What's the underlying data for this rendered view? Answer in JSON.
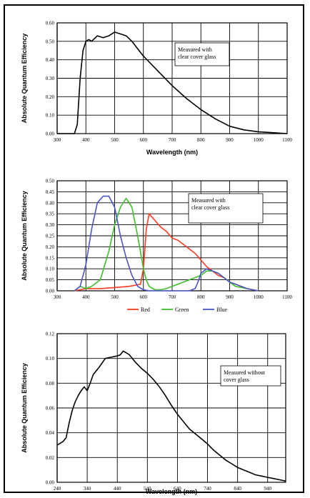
{
  "chart_data": [
    {
      "type": "line",
      "xlabel": "Wavelength (nm)",
      "ylabel": "Absolute Quantum Efficiency",
      "xlim": [
        300,
        1100
      ],
      "ylim": [
        0.0,
        0.6
      ],
      "xticks": [
        "300",
        "400",
        "500",
        "600",
        "700",
        "800",
        "900",
        "1000",
        "1100"
      ],
      "yticks": [
        "0.00",
        "0.10",
        "0.20",
        "0.30",
        "0.40",
        "0.50",
        "0.60"
      ],
      "grid": true,
      "annotation": [
        "Measured with",
        "clear cover glass"
      ],
      "series": [
        {
          "color": "#000000",
          "x": [
            300,
            360,
            370,
            380,
            390,
            400,
            410,
            420,
            440,
            460,
            480,
            500,
            520,
            540,
            560,
            580,
            600,
            650,
            700,
            750,
            800,
            850,
            900,
            950,
            1000,
            1050,
            1100
          ],
          "y": [
            0.0,
            0.0,
            0.05,
            0.3,
            0.45,
            0.5,
            0.51,
            0.5,
            0.53,
            0.52,
            0.53,
            0.55,
            0.54,
            0.53,
            0.5,
            0.46,
            0.42,
            0.34,
            0.26,
            0.19,
            0.13,
            0.08,
            0.04,
            0.02,
            0.01,
            0.005,
            0.0
          ]
        }
      ]
    },
    {
      "type": "line",
      "xlabel": "",
      "ylabel": "Absolute Quantum Efficiency",
      "xlim": [
        300,
        1100
      ],
      "ylim": [
        0.0,
        0.5
      ],
      "xticks": [
        "300",
        "400",
        "500",
        "600",
        "700",
        "800",
        "900",
        "1000",
        "1100"
      ],
      "yticks": [
        "0.00",
        "0.05",
        "0.10",
        "0.15",
        "0.20",
        "0.25",
        "0.30",
        "0.35",
        "0.40",
        "0.45",
        "0.50"
      ],
      "grid": true,
      "annotation": [
        "Measured with",
        "clear cover glass"
      ],
      "legend": "bottom",
      "series": [
        {
          "name": "Red",
          "color": "#ff3b1f",
          "x": [
            360,
            380,
            400,
            450,
            500,
            550,
            590,
            600,
            610,
            620,
            640,
            660,
            680,
            700,
            720,
            740,
            760,
            780,
            800,
            820,
            840,
            860,
            880,
            900,
            920,
            940,
            960,
            980,
            1000
          ],
          "y": [
            0.0,
            0.005,
            0.01,
            0.01,
            0.015,
            0.02,
            0.03,
            0.1,
            0.28,
            0.35,
            0.32,
            0.29,
            0.27,
            0.24,
            0.23,
            0.21,
            0.19,
            0.17,
            0.14,
            0.11,
            0.09,
            0.07,
            0.06,
            0.04,
            0.03,
            0.02,
            0.01,
            0.005,
            0.0
          ]
        },
        {
          "name": "Green",
          "color": "#3fbf2a",
          "x": [
            360,
            380,
            400,
            420,
            450,
            480,
            500,
            520,
            540,
            560,
            580,
            600,
            610,
            620,
            640,
            660,
            680,
            700,
            720,
            740,
            760,
            780,
            800,
            820,
            840,
            860,
            880,
            900,
            920,
            940,
            960,
            980,
            1000
          ],
          "y": [
            0.0,
            0.02,
            0.01,
            0.02,
            0.05,
            0.18,
            0.3,
            0.38,
            0.42,
            0.38,
            0.25,
            0.1,
            0.05,
            0.02,
            0.005,
            0.005,
            0.01,
            0.02,
            0.03,
            0.04,
            0.05,
            0.06,
            0.07,
            0.09,
            0.09,
            0.08,
            0.06,
            0.04,
            0.02,
            0.015,
            0.01,
            0.005,
            0.0
          ]
        },
        {
          "name": "Blue",
          "color": "#4a56c8",
          "x": [
            360,
            380,
            400,
            420,
            440,
            460,
            480,
            500,
            520,
            540,
            560,
            580,
            600,
            620,
            700,
            760,
            780,
            790,
            800,
            820,
            840,
            860,
            880,
            900,
            920,
            940,
            960,
            980,
            1000
          ],
          "y": [
            0.0,
            0.02,
            0.12,
            0.28,
            0.4,
            0.43,
            0.43,
            0.38,
            0.25,
            0.15,
            0.07,
            0.02,
            0.005,
            0.0,
            0.0,
            0.0,
            0.01,
            0.04,
            0.08,
            0.1,
            0.09,
            0.08,
            0.06,
            0.04,
            0.03,
            0.02,
            0.01,
            0.005,
            0.0
          ]
        }
      ]
    },
    {
      "type": "line",
      "xlabel": "Wavelength (nm)",
      "ylabel": "Absolute Quantum Efficiency",
      "xlim": [
        240,
        1000
      ],
      "ylim": [
        0.0,
        0.12
      ],
      "xticks": [
        "240",
        "340",
        "440",
        "540",
        "640",
        "740",
        "840",
        "940"
      ],
      "yticks": [
        "0.00",
        "0.02",
        "0.04",
        "0.06",
        "0.08",
        "0.10",
        "0.12"
      ],
      "grid": true,
      "annotation": [
        "Measured without",
        "cover glass"
      ],
      "series": [
        {
          "color": "#000000",
          "x": [
            240,
            260,
            270,
            280,
            290,
            300,
            310,
            320,
            330,
            340,
            350,
            360,
            380,
            400,
            420,
            440,
            450,
            460,
            480,
            500,
            520,
            540,
            560,
            580,
            600,
            620,
            640,
            660,
            680,
            700,
            720,
            740,
            760,
            780,
            800,
            820,
            840,
            860,
            880,
            900,
            920,
            940,
            960,
            980,
            1000
          ],
          "y": [
            0.03,
            0.033,
            0.036,
            0.048,
            0.058,
            0.065,
            0.07,
            0.074,
            0.077,
            0.074,
            0.08,
            0.087,
            0.093,
            0.1,
            0.101,
            0.102,
            0.103,
            0.106,
            0.103,
            0.097,
            0.092,
            0.088,
            0.083,
            0.077,
            0.07,
            0.062,
            0.055,
            0.049,
            0.043,
            0.039,
            0.035,
            0.031,
            0.026,
            0.022,
            0.018,
            0.015,
            0.012,
            0.01,
            0.008,
            0.006,
            0.005,
            0.004,
            0.003,
            0.002,
            0.001
          ]
        }
      ]
    }
  ]
}
